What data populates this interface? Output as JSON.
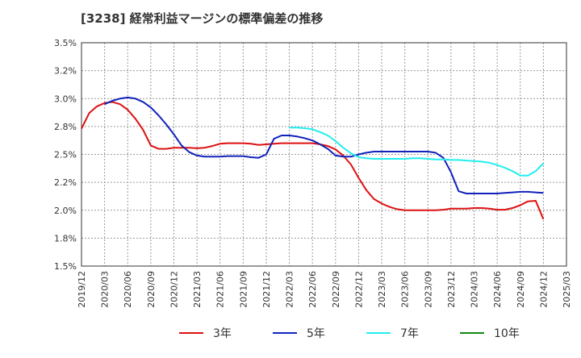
{
  "chart_data": {
    "type": "line",
    "title": "[3238]  経常利益マージンの標準偏差の推移",
    "xlabel": "",
    "ylabel": "",
    "ylim": [
      1.5,
      3.5
    ],
    "y_ticks": [
      "1.5%",
      "1.8%",
      "2.0%",
      "2.2%",
      "2.5%",
      "2.8%",
      "3.0%",
      "3.2%",
      "3.5%"
    ],
    "x_ticks": [
      "2019/12",
      "2020/03",
      "2020/06",
      "2020/09",
      "2020/12",
      "2021/03",
      "2021/06",
      "2021/09",
      "2021/12",
      "2022/03",
      "2022/06",
      "2022/09",
      "2022/12",
      "2023/03",
      "2023/06",
      "2023/09",
      "2023/12",
      "2024/03",
      "2024/06",
      "2024/09",
      "2024/12",
      "2025/03"
    ],
    "grid": true,
    "legend_position": "bottom",
    "series": [
      {
        "name": "3年",
        "color": "#dd1111",
        "x": [
          "2019/12",
          "2020/01",
          "2020/02",
          "2020/03",
          "2020/04",
          "2020/05",
          "2020/06",
          "2020/07",
          "2020/08",
          "2020/09",
          "2020/10",
          "2020/11",
          "2020/12",
          "2021/01",
          "2021/02",
          "2021/03",
          "2021/04",
          "2021/05",
          "2021/06",
          "2021/07",
          "2021/08",
          "2021/09",
          "2021/10",
          "2021/11",
          "2021/12",
          "2022/01",
          "2022/02",
          "2022/03",
          "2022/04",
          "2022/05",
          "2022/06",
          "2022/07",
          "2022/08",
          "2022/09",
          "2022/10",
          "2022/11",
          "2022/12",
          "2023/01",
          "2023/02",
          "2023/03",
          "2023/04",
          "2023/05",
          "2023/06",
          "2023/07",
          "2023/08",
          "2023/09",
          "2023/10",
          "2023/11",
          "2023/12",
          "2024/01",
          "2024/02",
          "2024/03",
          "2024/04",
          "2024/05",
          "2024/06",
          "2024/07",
          "2024/08",
          "2024/09",
          "2024/10",
          "2024/11",
          "2024/12"
        ],
        "values": [
          2.73,
          2.87,
          2.93,
          2.96,
          2.97,
          2.95,
          2.9,
          2.82,
          2.72,
          2.58,
          2.55,
          2.55,
          2.56,
          2.56,
          2.56,
          2.555,
          2.56,
          2.575,
          2.595,
          2.6,
          2.6,
          2.6,
          2.595,
          2.585,
          2.59,
          2.595,
          2.6,
          2.6,
          2.6,
          2.6,
          2.6,
          2.59,
          2.575,
          2.545,
          2.49,
          2.41,
          2.29,
          2.18,
          2.1,
          2.06,
          2.03,
          2.01,
          2.0,
          2.0,
          2.0,
          2.0,
          2.0,
          2.005,
          2.015,
          2.015,
          2.015,
          2.02,
          2.02,
          2.015,
          2.005,
          2.005,
          2.02,
          2.045,
          2.08,
          2.085,
          1.92
        ]
      },
      {
        "name": "5年",
        "color": "#1122bb",
        "x": [
          "2020/03",
          "2020/04",
          "2020/05",
          "2020/06",
          "2020/07",
          "2020/08",
          "2020/09",
          "2020/10",
          "2020/11",
          "2020/12",
          "2021/01",
          "2021/02",
          "2021/03",
          "2021/04",
          "2021/05",
          "2021/06",
          "2021/07",
          "2021/08",
          "2021/09",
          "2021/10",
          "2021/11",
          "2021/12",
          "2022/01",
          "2022/02",
          "2022/03",
          "2022/04",
          "2022/05",
          "2022/06",
          "2022/07",
          "2022/08",
          "2022/09",
          "2022/10",
          "2022/11",
          "2022/12",
          "2023/01",
          "2023/02",
          "2023/03",
          "2023/04",
          "2023/05",
          "2023/06",
          "2023/07",
          "2023/08",
          "2023/09",
          "2023/10",
          "2023/11",
          "2023/12",
          "2024/01",
          "2024/02",
          "2024/03",
          "2024/04",
          "2024/05",
          "2024/06",
          "2024/07",
          "2024/08",
          "2024/09",
          "2024/10",
          "2024/11",
          "2024/12"
        ],
        "values": [
          2.95,
          2.98,
          3.0,
          3.01,
          3.0,
          2.97,
          2.92,
          2.85,
          2.77,
          2.68,
          2.58,
          2.52,
          2.49,
          2.48,
          2.48,
          2.48,
          2.485,
          2.485,
          2.485,
          2.475,
          2.47,
          2.5,
          2.64,
          2.67,
          2.67,
          2.66,
          2.645,
          2.625,
          2.59,
          2.55,
          2.49,
          2.48,
          2.48,
          2.5,
          2.515,
          2.525,
          2.525,
          2.525,
          2.525,
          2.525,
          2.525,
          2.525,
          2.525,
          2.515,
          2.47,
          2.34,
          2.17,
          2.15,
          2.15,
          2.15,
          2.15,
          2.15,
          2.155,
          2.16,
          2.165,
          2.165,
          2.16,
          2.155
        ]
      },
      {
        "name": "7年",
        "color": "#22eeee",
        "x": [
          "2022/03",
          "2022/04",
          "2022/05",
          "2022/06",
          "2022/07",
          "2022/08",
          "2022/09",
          "2022/10",
          "2022/11",
          "2022/12",
          "2023/01",
          "2023/02",
          "2023/03",
          "2023/04",
          "2023/05",
          "2023/06",
          "2023/07",
          "2023/08",
          "2023/09",
          "2023/10",
          "2023/11",
          "2023/12",
          "2024/01",
          "2024/02",
          "2024/03",
          "2024/04",
          "2024/05",
          "2024/06",
          "2024/07",
          "2024/08",
          "2024/09",
          "2024/10",
          "2024/11",
          "2024/12"
        ],
        "values": [
          2.74,
          2.74,
          2.735,
          2.725,
          2.7,
          2.67,
          2.62,
          2.56,
          2.51,
          2.475,
          2.465,
          2.46,
          2.46,
          2.46,
          2.46,
          2.46,
          2.465,
          2.465,
          2.46,
          2.455,
          2.455,
          2.45,
          2.45,
          2.445,
          2.44,
          2.435,
          2.425,
          2.405,
          2.38,
          2.35,
          2.31,
          2.31,
          2.35,
          2.42
        ]
      },
      {
        "name": "10年",
        "color": "#118811",
        "x": [],
        "values": []
      }
    ]
  }
}
